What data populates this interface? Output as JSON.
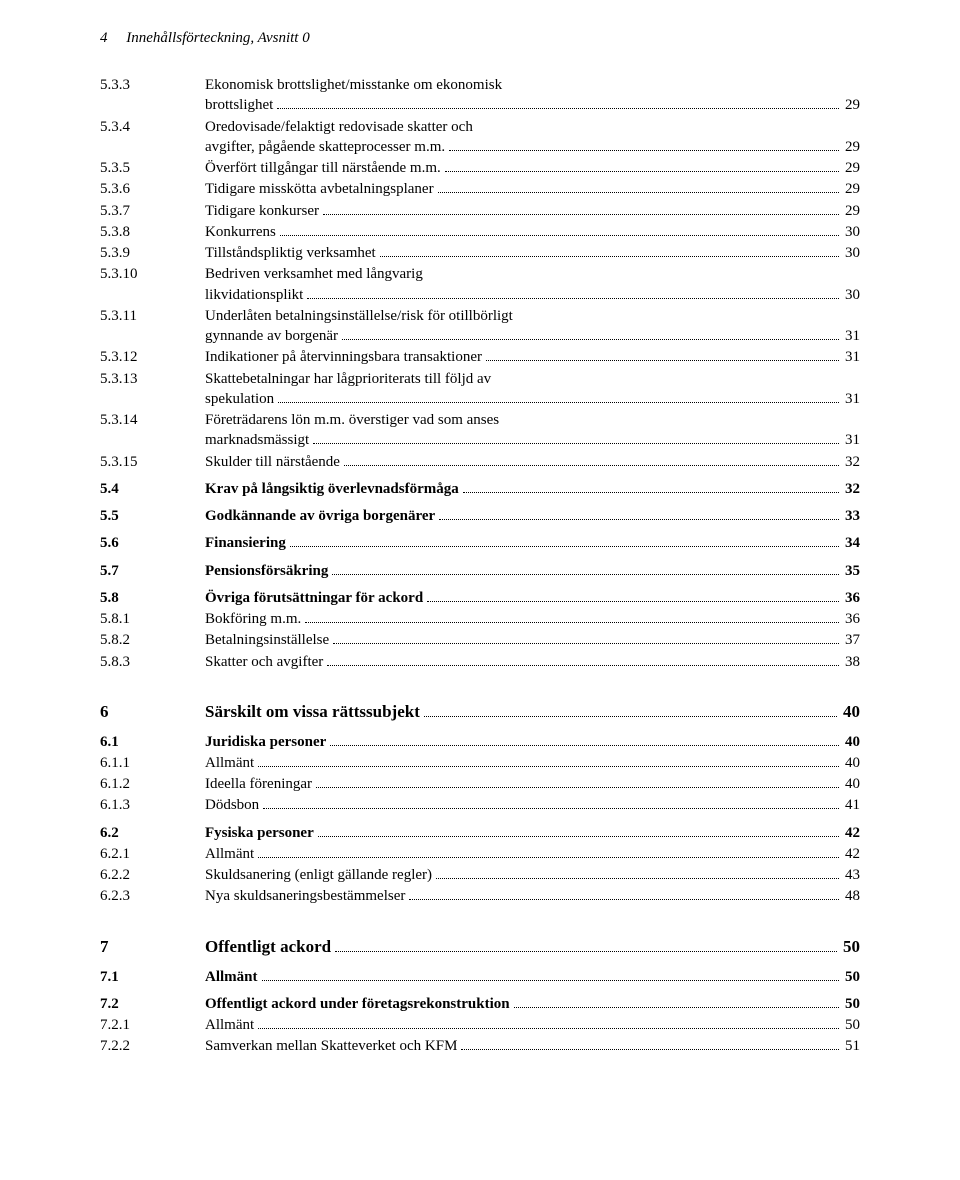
{
  "header": {
    "pagenum": "4",
    "text": "Innehållsförteckning, Avsnitt 0"
  },
  "toc": [
    {
      "n": "5.3.3",
      "multiline": true,
      "lines": [
        "Ekonomisk brottslighet/misstanke om ekonomisk"
      ],
      "last": "brottslighet",
      "p": "29"
    },
    {
      "n": "5.3.4",
      "multiline": true,
      "lines": [
        "Oredovisade/felaktigt redovisade skatter och"
      ],
      "last": "avgifter, pågående skatteprocesser m.m.",
      "p": "29"
    },
    {
      "n": "5.3.5",
      "t": "Överfört tillgångar till närstående m.m.",
      "p": "29"
    },
    {
      "n": "5.3.6",
      "t": "Tidigare misskötta avbetalningsplaner",
      "p": "29"
    },
    {
      "n": "5.3.7",
      "t": "Tidigare konkurser",
      "p": "29"
    },
    {
      "n": "5.3.8",
      "t": "Konkurrens",
      "p": "30"
    },
    {
      "n": "5.3.9",
      "t": "Tillståndspliktig verksamhet",
      "p": "30"
    },
    {
      "n": "5.3.10",
      "multiline": true,
      "lines": [
        "Bedriven verksamhet med långvarig"
      ],
      "last": "likvidationsplikt",
      "p": "30"
    },
    {
      "n": "5.3.11",
      "multiline": true,
      "lines": [
        "Underlåten betalningsinställelse/risk för otillbörligt"
      ],
      "last": "gynnande av borgenär",
      "p": "31"
    },
    {
      "n": "5.3.12",
      "t": "Indikationer på återvinningsbara transaktioner",
      "p": "31"
    },
    {
      "n": "5.3.13",
      "multiline": true,
      "lines": [
        "Skattebetalningar har lågprioriterats till följd av"
      ],
      "last": "spekulation",
      "p": "31"
    },
    {
      "n": "5.3.14",
      "multiline": true,
      "lines": [
        "Företrädarens lön m.m. överstiger vad som anses"
      ],
      "last": "marknadsmässigt",
      "p": "31"
    },
    {
      "n": "5.3.15",
      "t": "Skulder till närstående",
      "p": "32"
    },
    {
      "gap": "small"
    },
    {
      "n": "5.4",
      "t": "Krav på långsiktig överlevnadsförmåga",
      "p": "32",
      "bold": true
    },
    {
      "gap": "small"
    },
    {
      "n": "5.5",
      "t": "Godkännande av övriga borgenärer",
      "p": "33",
      "bold": true
    },
    {
      "gap": "small"
    },
    {
      "n": "5.6",
      "t": "Finansiering",
      "p": "34",
      "bold": true
    },
    {
      "gap": "small"
    },
    {
      "n": "5.7",
      "t": "Pensionsförsäkring",
      "p": "35",
      "bold": true
    },
    {
      "gap": "small"
    },
    {
      "n": "5.8",
      "t": "Övriga förutsättningar för ackord",
      "p": "36",
      "bold": true
    },
    {
      "n": "5.8.1",
      "t": "Bokföring m.m.",
      "p": "36"
    },
    {
      "n": "5.8.2",
      "t": "Betalningsinställelse",
      "p": "37"
    },
    {
      "n": "5.8.3",
      "t": "Skatter och avgifter",
      "p": "38"
    },
    {
      "gap": "large"
    },
    {
      "n": "6",
      "t": "Särskilt om vissa rättssubjekt",
      "p": "40",
      "chapter": true
    },
    {
      "gap": "small"
    },
    {
      "n": "6.1",
      "t": "Juridiska personer",
      "p": "40",
      "bold": true
    },
    {
      "n": "6.1.1",
      "t": "Allmänt",
      "p": "40"
    },
    {
      "n": "6.1.2",
      "t": "Ideella föreningar",
      "p": "40"
    },
    {
      "n": "6.1.3",
      "t": "Dödsbon",
      "p": "41"
    },
    {
      "gap": "small"
    },
    {
      "n": "6.2",
      "t": "Fysiska personer",
      "p": "42",
      "bold": true
    },
    {
      "n": "6.2.1",
      "t": "Allmänt",
      "p": "42"
    },
    {
      "n": "6.2.2",
      "t": "Skuldsanering (enligt gällande regler)",
      "p": "43"
    },
    {
      "n": "6.2.3",
      "t": "Nya skuldsaneringsbestämmelser",
      "p": "48"
    },
    {
      "gap": "large"
    },
    {
      "n": "7",
      "t": "Offentligt ackord",
      "p": "50",
      "chapter": true
    },
    {
      "gap": "small"
    },
    {
      "n": "7.1",
      "t": "Allmänt",
      "p": "50",
      "bold": true
    },
    {
      "gap": "small"
    },
    {
      "n": "7.2",
      "t": "Offentligt ackord under företagsrekonstruktion",
      "p": "50",
      "bold": true
    },
    {
      "n": "7.2.1",
      "t": "Allmänt",
      "p": "50"
    },
    {
      "n": "7.2.2",
      "t": "Samverkan mellan Skatteverket och KFM",
      "p": "51"
    }
  ]
}
